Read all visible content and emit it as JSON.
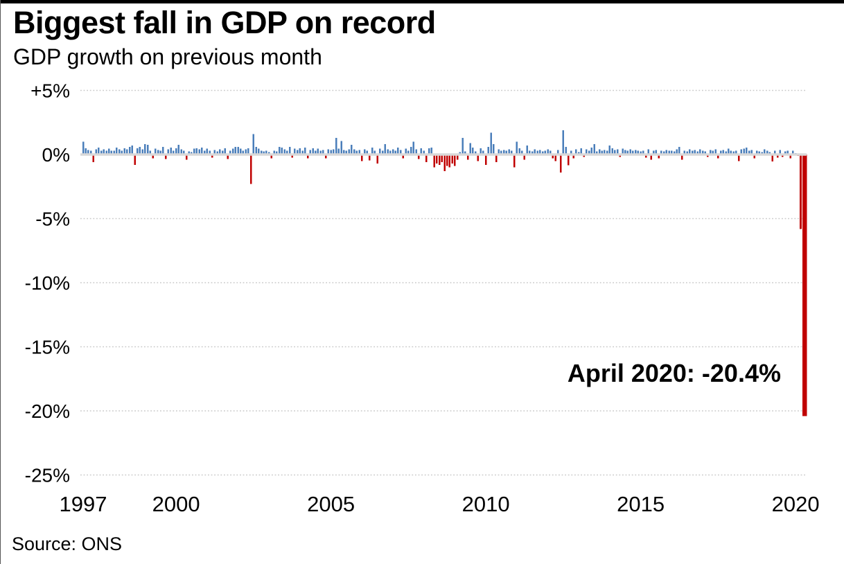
{
  "header": {
    "title": "Biggest fall in GDP on record",
    "subtitle": "GDP growth on previous month"
  },
  "footer": {
    "source_label": "Source: ONS"
  },
  "chart_data": {
    "type": "bar",
    "title": "Biggest fall in GDP on record",
    "subtitle": "GDP growth on previous month",
    "unit": "percent",
    "x_axis": {
      "start": "1997-01",
      "end": "2020-04",
      "frequency": "monthly"
    },
    "x_tick_labels": [
      "1997",
      "2000",
      "2005",
      "2010",
      "2015",
      "2020"
    ],
    "y_tick_labels": [
      "+5%",
      "0%",
      "-5%",
      "-10%",
      "-15%",
      "-20%",
      "-25%"
    ],
    "y_tick_values": [
      5,
      0,
      -5,
      -10,
      -15,
      -20,
      -25
    ],
    "ylim": [
      -25,
      5
    ],
    "grid": "dotted-horizontal",
    "legend": "none",
    "colors": {
      "positive": "#4a7eba",
      "negative": "#c00000",
      "grid_line": "#c9c9c9",
      "zero_axis_line": "#d9d9d9",
      "top_bar": "#000000"
    },
    "annotation": {
      "text": "April 2020: -20.4%",
      "month": "2020-04",
      "value": -20.4
    },
    "series_name": "GDP month-on-month growth (%)",
    "values_by_year": {
      "1997": [
        1.0,
        0.5,
        0.35,
        0.3,
        -0.6,
        0.4,
        0.55,
        0.3,
        0.4,
        0.3,
        0.45,
        0.3
      ],
      "1998": [
        0.3,
        0.55,
        0.4,
        0.3,
        0.5,
        0.4,
        0.6,
        0.7,
        -0.8,
        0.5,
        0.6,
        0.4
      ],
      "1999": [
        0.8,
        0.75,
        0.3,
        -0.3,
        0.45,
        0.35,
        0.3,
        0.6,
        -0.35,
        0.4,
        0.55,
        0.3
      ],
      "2000": [
        0.5,
        0.75,
        0.4,
        0.3,
        -0.4,
        0.25,
        0.2,
        0.45,
        0.5,
        0.4,
        0.55,
        0.3
      ],
      "2001": [
        0.45,
        0.3,
        -0.25,
        0.35,
        0.25,
        0.4,
        0.3,
        0.5,
        -0.35,
        0.3,
        0.45,
        0.6
      ],
      "2002": [
        0.6,
        0.45,
        0.3,
        0.4,
        0.5,
        -2.3,
        1.6,
        0.6,
        0.45,
        0.3,
        0.25,
        0.3
      ],
      "2003": [
        0.2,
        -0.3,
        0.3,
        0.25,
        0.6,
        0.55,
        0.4,
        0.3,
        0.6,
        -0.25,
        0.45,
        0.35
      ],
      "2004": [
        0.5,
        0.3,
        0.55,
        -0.3,
        0.35,
        0.5,
        0.3,
        0.45,
        0.3,
        0.35,
        -0.3,
        0.4
      ],
      "2005": [
        0.35,
        0.4,
        1.3,
        0.45,
        1.05,
        0.35,
        0.3,
        0.4,
        0.75,
        0.4,
        0.3,
        0.35
      ],
      "2006": [
        -0.5,
        0.4,
        0.3,
        -0.45,
        0.55,
        0.3,
        -0.7,
        0.45,
        0.3,
        0.8,
        0.4,
        0.3
      ],
      "2007": [
        0.4,
        0.3,
        0.55,
        0.35,
        -0.3,
        0.45,
        0.3,
        0.6,
        1.0,
        0.4,
        -0.35,
        0.5
      ],
      "2008": [
        0.3,
        -0.6,
        0.5,
        0.55,
        -1.0,
        -0.7,
        -0.8,
        -0.6,
        -1.3,
        -0.9,
        -1.0,
        -0.7
      ],
      "2009": [
        -0.9,
        -0.4,
        0.2,
        1.3,
        0.25,
        -0.4,
        0.9,
        0.55,
        0.25,
        -0.5,
        0.5,
        0.3
      ],
      "2010": [
        -0.8,
        0.6,
        1.7,
        0.8,
        -0.6,
        0.4,
        0.3,
        0.35,
        0.3,
        0.4,
        0.3,
        -1.0
      ],
      "2011": [
        1.0,
        0.5,
        0.3,
        -0.4,
        0.7,
        0.3,
        0.25,
        0.4,
        0.3,
        0.35,
        0.25,
        0.3
      ],
      "2012": [
        0.4,
        0.3,
        -0.3,
        -0.5,
        0.35,
        -1.4,
        1.9,
        0.6,
        -0.85,
        0.3,
        -0.3,
        0.4
      ],
      "2013": [
        0.2,
        0.5,
        -0.2,
        0.4,
        0.3,
        0.55,
        0.8,
        0.25,
        0.4,
        0.3,
        0.35,
        0.3
      ],
      "2014": [
        0.7,
        0.5,
        0.35,
        0.4,
        -0.2,
        0.45,
        0.35,
        0.3,
        0.4,
        0.3,
        0.35,
        0.3
      ],
      "2015": [
        0.25,
        0.3,
        -0.25,
        0.4,
        -0.4,
        0.3,
        0.35,
        -0.3,
        0.3,
        0.25,
        0.35,
        0.3
      ],
      "2016": [
        0.3,
        0.25,
        0.4,
        0.6,
        -0.4,
        0.3,
        0.25,
        0.4,
        0.3,
        0.35,
        0.25,
        0.4
      ],
      "2017": [
        0.3,
        0.25,
        -0.2,
        0.35,
        0.3,
        0.4,
        -0.3,
        0.3,
        0.35,
        0.25,
        0.45,
        0.3
      ],
      "2018": [
        0.25,
        0.3,
        -0.5,
        0.4,
        0.45,
        0.55,
        0.3,
        0.35,
        -0.3,
        0.3,
        0.25,
        0.2
      ],
      "2019": [
        0.4,
        0.3,
        0.2,
        -0.55,
        0.3,
        -0.25,
        0.35,
        -0.2,
        0.25,
        0.3,
        -0.3,
        0.3
      ],
      "2020": [
        0.1,
        -0.1,
        -5.8,
        -20.4
      ]
    }
  }
}
